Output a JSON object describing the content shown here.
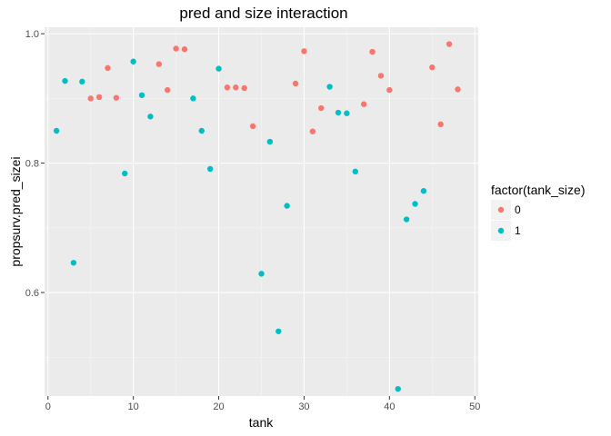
{
  "chart_data": {
    "type": "scatter",
    "title": "pred and size interaction",
    "xlabel": "tank",
    "ylabel": "propsurv.pred_sizei",
    "xlim": [
      -0.4,
      50.4
    ],
    "ylim": [
      0.44,
      1.01
    ],
    "xticks": [
      0,
      10,
      20,
      30,
      40,
      50
    ],
    "yticks": [
      0.6,
      0.8,
      1.0
    ],
    "ytick_labels": [
      "0.6",
      "0.8",
      "1.0"
    ],
    "grid": true,
    "legend": {
      "title": "factor(tank_size)",
      "placement": "right"
    },
    "series": [
      {
        "name": "0",
        "color": "#F8766D",
        "points": [
          [
            5,
            0.9
          ],
          [
            6,
            0.902
          ],
          [
            7,
            0.947
          ],
          [
            8,
            0.901
          ],
          [
            13,
            0.953
          ],
          [
            14,
            0.913
          ],
          [
            15,
            0.977
          ],
          [
            16,
            0.976
          ],
          [
            21,
            0.917
          ],
          [
            22,
            0.917
          ],
          [
            23,
            0.916
          ],
          [
            24,
            0.857
          ],
          [
            29,
            0.923
          ],
          [
            30,
            0.973
          ],
          [
            31,
            0.849
          ],
          [
            32,
            0.885
          ],
          [
            37,
            0.891
          ],
          [
            38,
            0.972
          ],
          [
            39,
            0.935
          ],
          [
            40,
            0.913
          ],
          [
            45,
            0.948
          ],
          [
            46,
            0.86
          ],
          [
            47,
            0.984
          ],
          [
            48,
            0.914
          ]
        ]
      },
      {
        "name": "1",
        "color": "#00BFC4",
        "points": [
          [
            1,
            0.85
          ],
          [
            2,
            0.927
          ],
          [
            3,
            0.646
          ],
          [
            4,
            0.926
          ],
          [
            9,
            0.784
          ],
          [
            10,
            0.957
          ],
          [
            11,
            0.905
          ],
          [
            12,
            0.872
          ],
          [
            17,
            0.9
          ],
          [
            18,
            0.85
          ],
          [
            19,
            0.791
          ],
          [
            20,
            0.946
          ],
          [
            25,
            0.629
          ],
          [
            26,
            0.833
          ],
          [
            27,
            0.54
          ],
          [
            28,
            0.734
          ],
          [
            33,
            0.918
          ],
          [
            34,
            0.878
          ],
          [
            35,
            0.877
          ],
          [
            36,
            0.787
          ],
          [
            41,
            0.451
          ],
          [
            42,
            0.713
          ],
          [
            43,
            0.737
          ],
          [
            44,
            0.757
          ]
        ]
      }
    ]
  }
}
